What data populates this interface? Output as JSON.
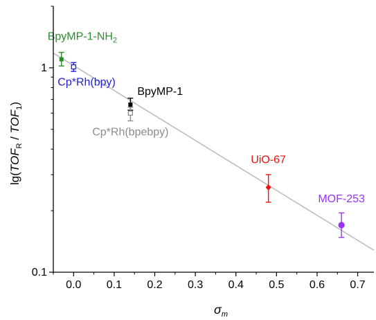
{
  "chart_data": {
    "type": "scatter",
    "xlabel": "σm",
    "xlabel_main": "σ",
    "xlabel_sub": "m",
    "ylabel": "lg(TOFR / TOF1)",
    "ylabel_parts": {
      "prefix": "lg(",
      "num": "TOF",
      "num_sub": "R",
      "sep": " / ",
      "den": "TOF",
      "den_sub": "1",
      "suffix": ")"
    },
    "xlim": [
      -0.05,
      0.74
    ],
    "ylim": [
      0.1,
      2.0
    ],
    "y_scale": "log",
    "x_ticks": [
      "0.0",
      "0.1",
      "0.2",
      "0.3",
      "0.4",
      "0.5",
      "0.6",
      "0.7"
    ],
    "x_tick_values": [
      0.0,
      0.1,
      0.2,
      0.3,
      0.4,
      0.5,
      0.6,
      0.7
    ],
    "y_ticks": [
      "0.1",
      "1"
    ],
    "y_tick_values": [
      0.1,
      1
    ],
    "grid": false,
    "fit_line": {
      "color": "#bdbdbd",
      "x": [
        -0.05,
        0.74
      ],
      "y": [
        1.18,
        0.128
      ]
    },
    "points": [
      {
        "label": "BpyMP-1-NH",
        "label_sub": "2",
        "x": -0.03,
        "y": 1.1,
        "y_low": 1.02,
        "y_high": 1.19,
        "color": "#2e8b2e",
        "marker": "square"
      },
      {
        "label": "Cp*Rh(bpy)",
        "label_sub": "",
        "x": 0.0,
        "y": 1.01,
        "y_low": 0.96,
        "y_high": 1.06,
        "color": "#1f1fd6",
        "marker": "open-square"
      },
      {
        "label": "BpyMP-1",
        "label_sub": "",
        "x": 0.14,
        "y": 0.66,
        "y_low": 0.62,
        "y_high": 0.71,
        "color": "#000000",
        "marker": "square"
      },
      {
        "label": "Cp*Rh(bpebpy)",
        "label_sub": "",
        "x": 0.14,
        "y": 0.6,
        "y_low": 0.55,
        "y_high": 0.64,
        "color": "#8c8c8c",
        "marker": "open-square"
      },
      {
        "label": "UiO-67",
        "label_sub": "",
        "x": 0.48,
        "y": 0.26,
        "y_low": 0.22,
        "y_high": 0.3,
        "color": "#ee1111",
        "marker": "diamond"
      },
      {
        "label": "MOF-253",
        "label_sub": "",
        "x": 0.66,
        "y": 0.17,
        "y_low": 0.148,
        "y_high": 0.195,
        "color": "#9b30ff",
        "marker": "circle"
      }
    ]
  }
}
